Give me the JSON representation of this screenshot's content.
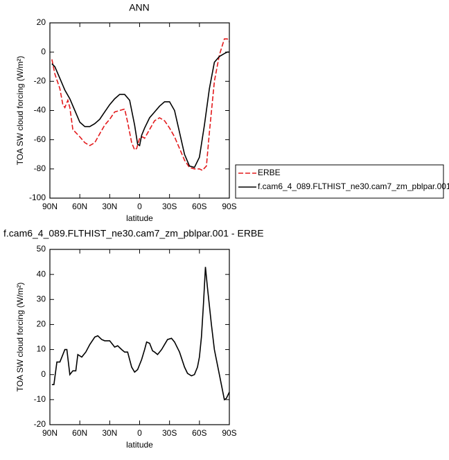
{
  "chart_data": [
    {
      "type": "line",
      "title": "ANN",
      "xlabel": "latitude",
      "ylabel": "TOA SW cloud forcing (W/m²)",
      "xlim": [
        90,
        -90
      ],
      "ylim": [
        20,
        -100
      ],
      "xticks": [
        {
          "value": 90,
          "label": "90N"
        },
        {
          "value": 60,
          "label": "60N"
        },
        {
          "value": 30,
          "label": "30N"
        },
        0,
        {
          "value": -30,
          "label": "30S"
        },
        {
          "value": -60,
          "label": "60S"
        },
        {
          "value": -90,
          "label": "90S"
        }
      ],
      "yticks": [
        20,
        0,
        -20,
        -40,
        -60,
        -80,
        -100
      ],
      "legend": "outside-right",
      "series": [
        {
          "name": "ERBE",
          "color": "#e31a1c",
          "dash": true,
          "x": [
            88,
            85,
            80,
            77,
            75,
            72,
            70,
            67,
            60,
            55,
            50,
            45,
            40,
            35,
            30,
            25,
            20,
            15,
            12,
            8,
            5,
            3,
            0,
            -3,
            -5,
            -10,
            -15,
            -20,
            -25,
            -30,
            -35,
            -40,
            -45,
            -50,
            -55,
            -60,
            -63,
            -67,
            -70,
            -75,
            -80,
            -85,
            -88,
            -90
          ],
          "values": [
            -5,
            -15,
            -25,
            -36,
            -38,
            -33,
            -38,
            -53,
            -58,
            -62,
            -64,
            -62,
            -56,
            -50,
            -46,
            -41,
            -40,
            -39,
            -48,
            -62,
            -67,
            -66,
            -59,
            -58,
            -59,
            -53,
            -47,
            -45,
            -47,
            -52,
            -58,
            -66,
            -74,
            -79,
            -80,
            -80,
            -81,
            -78,
            -55,
            -20,
            -2,
            9,
            9,
            7
          ]
        },
        {
          "name": "f.cam6_4_089.FLTHIST_ne30.cam7_zm_pblpar.001",
          "color": "#000000",
          "dash": false,
          "x": [
            88,
            85,
            80,
            75,
            70,
            65,
            60,
            55,
            50,
            45,
            40,
            35,
            30,
            25,
            20,
            15,
            10,
            5,
            2,
            0,
            -2,
            -5,
            -10,
            -15,
            -20,
            -25,
            -30,
            -35,
            -40,
            -45,
            -50,
            -55,
            -60,
            -65,
            -70,
            -75,
            -80,
            -85,
            -88,
            -90
          ],
          "values": [
            -8,
            -10,
            -18,
            -26,
            -32,
            -40,
            -48,
            -51,
            -51,
            -49,
            -46,
            -41,
            -36,
            -32,
            -29,
            -29,
            -33,
            -50,
            -63,
            -64,
            -57,
            -52,
            -45,
            -41,
            -37,
            -34,
            -34,
            -40,
            -55,
            -70,
            -78,
            -79,
            -72,
            -50,
            -25,
            -7,
            -3,
            -1,
            0,
            0
          ]
        }
      ]
    },
    {
      "type": "line",
      "title": "f.cam6_4_089.FLTHIST_ne30.cam7_zm_pblpar.001 - ERBE",
      "xlabel": "latitude",
      "ylabel": "TOA SW cloud forcing (W/m²)",
      "xlim": [
        90,
        -90
      ],
      "ylim": [
        50,
        -20
      ],
      "xticks": [
        {
          "value": 90,
          "label": "90N"
        },
        {
          "value": 60,
          "label": "60N"
        },
        {
          "value": 30,
          "label": "30N"
        },
        0,
        {
          "value": -30,
          "label": "30S"
        },
        {
          "value": -60,
          "label": "60S"
        },
        {
          "value": -90,
          "label": "90S"
        }
      ],
      "yticks": [
        50,
        40,
        30,
        20,
        10,
        0,
        -10,
        -20
      ],
      "series": [
        {
          "color": "#000000",
          "dash": false,
          "x": [
            88,
            86,
            83,
            80,
            78,
            75,
            73,
            70,
            67,
            64,
            62,
            58,
            54,
            50,
            45,
            42,
            38,
            35,
            30,
            27,
            25,
            22,
            18,
            15,
            12,
            8,
            5,
            2,
            -2,
            -5,
            -7,
            -10,
            -13,
            -15,
            -18,
            -22,
            -25,
            -28,
            -32,
            -35,
            -40,
            -45,
            -48,
            -52,
            -55,
            -58,
            -60,
            -62,
            -64,
            -66,
            -68,
            -72,
            -75,
            -80,
            -85,
            -87,
            -90
          ],
          "values": [
            -4,
            -4,
            5,
            5,
            7,
            10,
            10,
            0,
            1.5,
            1.5,
            8,
            7,
            9,
            12,
            15,
            15.5,
            14,
            13.5,
            13.5,
            12,
            11,
            11.5,
            10,
            9,
            9,
            3,
            1,
            2,
            6,
            10,
            13,
            12.5,
            9.5,
            9,
            8,
            10,
            12,
            14,
            14.5,
            13,
            9,
            3,
            0.5,
            -0.5,
            0,
            3,
            7,
            15,
            28,
            43,
            35,
            20,
            10,
            0,
            -10,
            -9.5,
            -7
          ]
        }
      ]
    }
  ]
}
